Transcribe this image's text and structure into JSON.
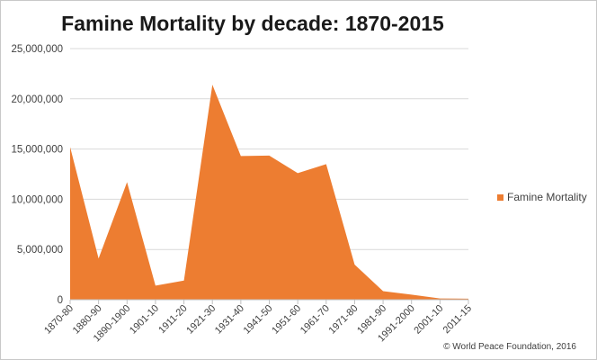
{
  "chart_data": {
    "type": "area",
    "title": "Famine Mortality by decade: 1870-2015",
    "xlabel": "",
    "ylabel": "",
    "categories": [
      "1870-80",
      "1880-90",
      "1890-1900",
      "1901-10",
      "1911-20",
      "1921-30",
      "1931-40",
      "1941-50",
      "1951-60",
      "1961-70",
      "1971-80",
      "1981-90",
      "1991-2000",
      "2001-10",
      "2011-15"
    ],
    "series": [
      {
        "name": "Famine Mortality",
        "color": "#ED7D31",
        "values": [
          15200000,
          4100000,
          11700000,
          1400000,
          1900000,
          21400000,
          14300000,
          14350000,
          12600000,
          13500000,
          3500000,
          850000,
          500000,
          120000,
          100000
        ]
      }
    ],
    "ylim": [
      0,
      25000000
    ],
    "yticks": [
      0,
      5000000,
      10000000,
      15000000,
      20000000,
      25000000
    ],
    "ytick_labels": [
      "0",
      "5,000,000",
      "10,000,000",
      "15,000,000",
      "20,000,000",
      "25,000,000"
    ],
    "grid": true,
    "legend_position": "right"
  },
  "credit": "© World Peace Foundation,  2016"
}
